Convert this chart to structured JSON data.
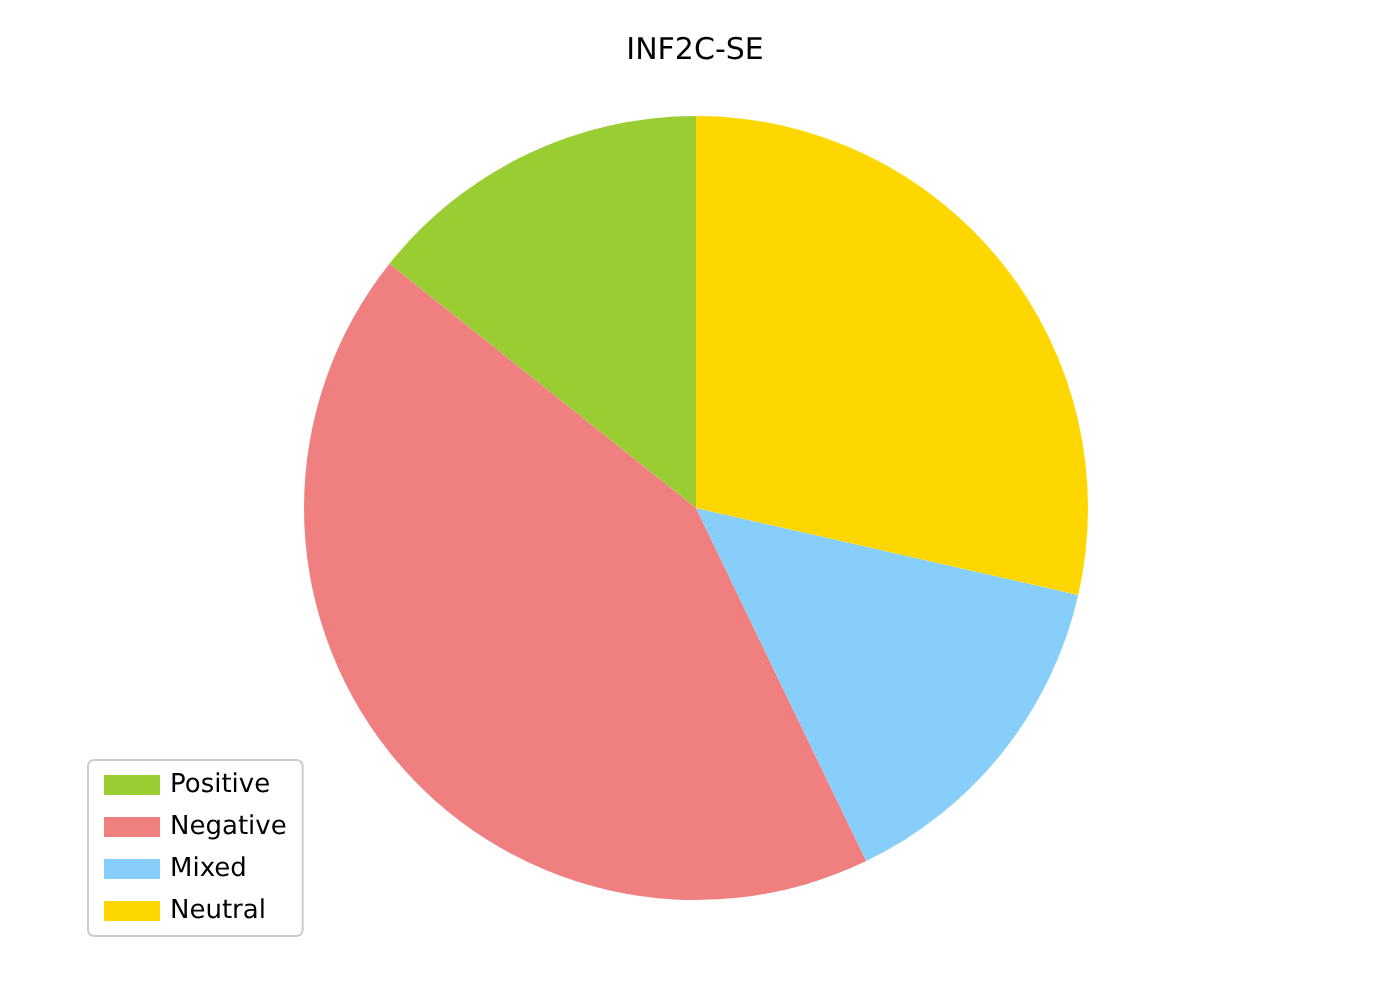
{
  "chart_data": {
    "type": "pie",
    "title": "INF2C-SE",
    "categories": [
      "Positive",
      "Negative",
      "Mixed",
      "Neutral"
    ],
    "values": [
      14.29,
      42.86,
      14.29,
      28.56
    ],
    "colors": [
      "#9acd32",
      "#f08080",
      "#87cefa",
      "#ffd700"
    ],
    "legend": "bottom left"
  }
}
